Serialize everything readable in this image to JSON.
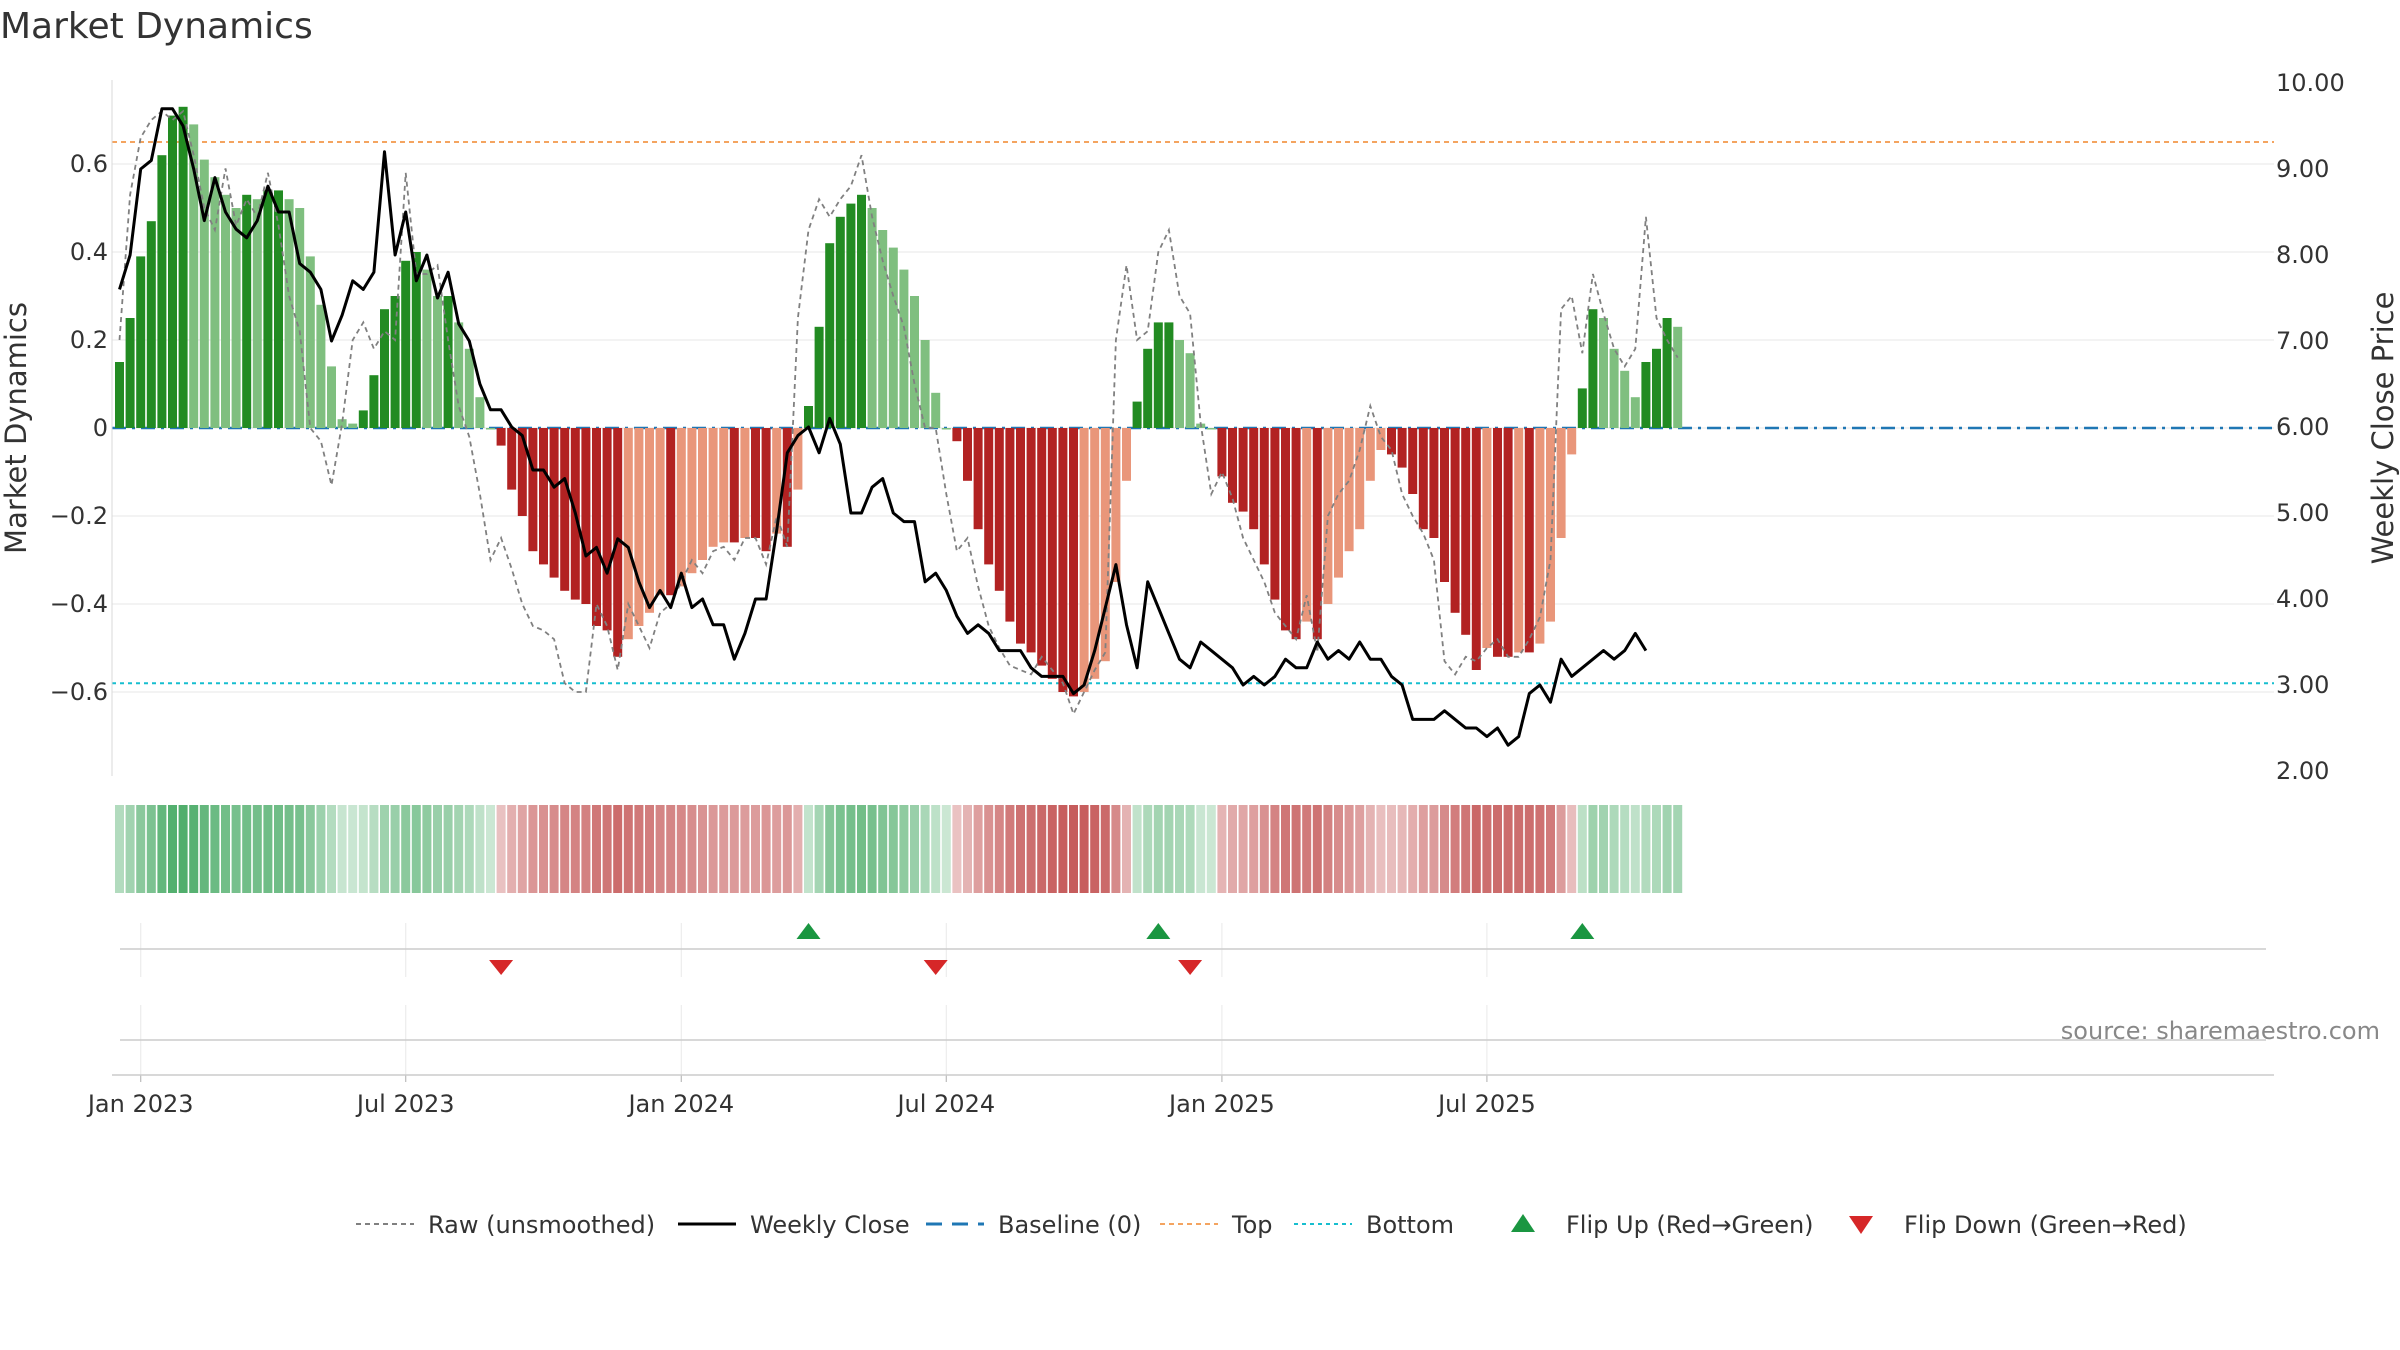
{
  "chart_data": {
    "type": "bar",
    "title": "Market Dynamics",
    "ylabel_left": "Market Dynamics",
    "ylabel_right": "Weekly Close Price",
    "ylim_left": [
      -0.78,
      0.78
    ],
    "ylim_right": [
      2.0,
      10.0
    ],
    "left_ticks": [
      {
        "v": 0.6,
        "label": "0.6"
      },
      {
        "v": 0.4,
        "label": "0.4"
      },
      {
        "v": 0.2,
        "label": "0.2"
      },
      {
        "v": 0,
        "label": "0"
      },
      {
        "v": -0.2,
        "label": "−0.2"
      },
      {
        "v": -0.4,
        "label": "−0.4"
      },
      {
        "v": -0.6,
        "label": "−0.6"
      }
    ],
    "right_ticks": [
      {
        "v": 10,
        "label": "10.00"
      },
      {
        "v": 9,
        "label": "9.00"
      },
      {
        "v": 8,
        "label": "8.00"
      },
      {
        "v": 7,
        "label": "7.00"
      },
      {
        "v": 6,
        "label": "6.00"
      },
      {
        "v": 5,
        "label": "5.00"
      },
      {
        "v": 4,
        "label": "4.00"
      },
      {
        "v": 3,
        "label": "3.00"
      },
      {
        "v": 2,
        "label": "2.00"
      }
    ],
    "x_ticks": [
      {
        "week": 2,
        "label": "Jan 2023"
      },
      {
        "week": 27,
        "label": "Jul 2023"
      },
      {
        "week": 53,
        "label": "Jan 2024"
      },
      {
        "week": 78,
        "label": "Jul 2024"
      },
      {
        "week": 104,
        "label": "Jan 2025"
      },
      {
        "week": 129,
        "label": "Jul 2025"
      }
    ],
    "top_level": 0.65,
    "bottom_level": -0.58,
    "baseline": 0,
    "dynamics": [
      0.15,
      0.25,
      0.39,
      0.47,
      0.62,
      0.71,
      0.73,
      0.69,
      0.61,
      0.57,
      0.53,
      0.5,
      0.53,
      0.52,
      0.54,
      0.54,
      0.52,
      0.5,
      0.39,
      0.28,
      0.14,
      0.02,
      0.01,
      0.04,
      0.12,
      0.27,
      0.3,
      0.38,
      0.4,
      0.36,
      0.3,
      0.3,
      0.24,
      0.18,
      0.07,
      0.0,
      -0.04,
      -0.14,
      -0.2,
      -0.28,
      -0.31,
      -0.34,
      -0.37,
      -0.39,
      -0.4,
      -0.45,
      -0.46,
      -0.52,
      -0.48,
      -0.45,
      -0.42,
      -0.38,
      -0.38,
      -0.36,
      -0.33,
      -0.3,
      -0.27,
      -0.26,
      -0.26,
      -0.25,
      -0.25,
      -0.28,
      -0.24,
      -0.27,
      -0.14,
      0.05,
      0.23,
      0.42,
      0.48,
      0.51,
      0.53,
      0.5,
      0.45,
      0.41,
      0.36,
      0.3,
      0.2,
      0.08,
      0.0,
      -0.03,
      -0.12,
      -0.23,
      -0.31,
      -0.37,
      -0.44,
      -0.49,
      -0.51,
      -0.54,
      -0.57,
      -0.6,
      -0.61,
      -0.6,
      -0.57,
      -0.53,
      -0.35,
      -0.12,
      0.06,
      0.18,
      0.24,
      0.24,
      0.2,
      0.17,
      0.01,
      0.0,
      -0.11,
      -0.17,
      -0.19,
      -0.23,
      -0.31,
      -0.39,
      -0.46,
      -0.48,
      -0.44,
      -0.48,
      -0.4,
      -0.34,
      -0.28,
      -0.23,
      -0.12,
      -0.05,
      -0.06,
      -0.09,
      -0.15,
      -0.23,
      -0.25,
      -0.35,
      -0.42,
      -0.47,
      -0.55,
      -0.5,
      -0.52,
      -0.52,
      -0.51,
      -0.51,
      -0.49,
      -0.44,
      -0.25,
      -0.06,
      0.09,
      0.27,
      0.25,
      0.18,
      0.13,
      0.07,
      0.15,
      0.18,
      0.25,
      0.23
    ],
    "raw": [
      0.2,
      0.53,
      0.66,
      0.7,
      0.72,
      0.7,
      0.72,
      0.62,
      0.5,
      0.45,
      0.59,
      0.46,
      0.52,
      0.48,
      0.58,
      0.46,
      0.3,
      0.22,
      0.0,
      -0.03,
      -0.13,
      0.01,
      0.2,
      0.24,
      0.18,
      0.22,
      0.2,
      0.58,
      0.35,
      0.35,
      0.37,
      0.2,
      0.05,
      -0.02,
      -0.15,
      -0.3,
      -0.25,
      -0.32,
      -0.4,
      -0.45,
      -0.46,
      -0.48,
      -0.58,
      -0.6,
      -0.6,
      -0.4,
      -0.45,
      -0.55,
      -0.4,
      -0.45,
      -0.5,
      -0.42,
      -0.4,
      -0.35,
      -0.3,
      -0.33,
      -0.28,
      -0.27,
      -0.3,
      -0.25,
      -0.25,
      -0.31,
      -0.2,
      -0.27,
      0.25,
      0.45,
      0.52,
      0.48,
      0.52,
      0.55,
      0.62,
      0.48,
      0.38,
      0.3,
      0.23,
      0.1,
      0.0,
      0.0,
      -0.15,
      -0.28,
      -0.25,
      -0.36,
      -0.45,
      -0.5,
      -0.54,
      -0.55,
      -0.56,
      -0.52,
      -0.55,
      -0.58,
      -0.65,
      -0.6,
      -0.55,
      -0.51,
      0.2,
      0.37,
      0.2,
      0.22,
      0.4,
      0.45,
      0.3,
      0.26,
      0.01,
      -0.15,
      -0.1,
      -0.16,
      -0.25,
      -0.3,
      -0.35,
      -0.42,
      -0.45,
      -0.48,
      -0.38,
      -0.51,
      -0.2,
      -0.15,
      -0.12,
      -0.05,
      0.05,
      -0.02,
      -0.05,
      -0.15,
      -0.2,
      -0.24,
      -0.3,
      -0.53,
      -0.56,
      -0.52,
      -0.53,
      -0.5,
      -0.48,
      -0.52,
      -0.52,
      -0.48,
      -0.43,
      -0.3,
      0.27,
      0.3,
      0.17,
      0.35,
      0.26,
      0.18,
      0.14,
      0.18,
      0.48,
      0.25,
      0.2,
      0.16
    ],
    "price": [
      7.6,
      8.0,
      9.0,
      9.1,
      9.7,
      9.7,
      9.5,
      9.0,
      8.4,
      8.9,
      8.5,
      8.3,
      8.2,
      8.4,
      8.8,
      8.5,
      8.5,
      7.9,
      7.8,
      7.6,
      7.0,
      7.3,
      7.7,
      7.6,
      7.8,
      9.2,
      8.0,
      8.5,
      7.7,
      8.0,
      7.5,
      7.8,
      7.2,
      7.0,
      6.5,
      6.2,
      6.2,
      6.0,
      5.9,
      5.5,
      5.5,
      5.3,
      5.4,
      5.0,
      4.5,
      4.6,
      4.3,
      4.7,
      4.6,
      4.2,
      3.9,
      4.1,
      3.9,
      4.3,
      3.9,
      4.0,
      3.7,
      3.7,
      3.3,
      3.6,
      4.0,
      4.0,
      4.8,
      5.7,
      5.9,
      6.0,
      5.7,
      6.1,
      5.8,
      5.0,
      5.0,
      5.3,
      5.4,
      5.0,
      4.9,
      4.9,
      4.2,
      4.3,
      4.1,
      3.8,
      3.6,
      3.7,
      3.6,
      3.4,
      3.4,
      3.4,
      3.2,
      3.1,
      3.1,
      3.1,
      2.9,
      3.0,
      3.4,
      3.9,
      4.4,
      3.7,
      3.2,
      4.2,
      3.9,
      3.6,
      3.3,
      3.2,
      3.5,
      3.4,
      3.3,
      3.2,
      3.0,
      3.1,
      3.0,
      3.1,
      3.3,
      3.2,
      3.2,
      3.5,
      3.3,
      3.4,
      3.3,
      3.5,
      3.3,
      3.3,
      3.1,
      3.0,
      2.6,
      2.6,
      2.6,
      2.7,
      2.6,
      2.5,
      2.5,
      2.4,
      2.5,
      2.3,
      2.4,
      2.9,
      3.0,
      2.8,
      3.3,
      3.1,
      3.2,
      3.3,
      3.4,
      3.3,
      3.4,
      3.6,
      3.4
    ],
    "flip_up_weeks": [
      65,
      98,
      138
    ],
    "flip_down_weeks": [
      36,
      77,
      101
    ],
    "colors": {
      "strong_green": "#228b22",
      "weak_green": "#7fbf7f",
      "strong_red": "#b22222",
      "weak_red": "#e9967a",
      "top_line": "#f4a460",
      "bottom_line": "#17becf",
      "baseline": "#1f77b4",
      "price_line": "#000000",
      "raw_line": "#808080",
      "flip_up": "#1a9641",
      "flip_down": "#d62728"
    },
    "legend": [
      {
        "label": "Raw (unsmoothed)",
        "style": "raw"
      },
      {
        "label": "Weekly Close",
        "style": "price"
      },
      {
        "label": "Baseline (0)",
        "style": "baseline"
      },
      {
        "label": "Top",
        "style": "top"
      },
      {
        "label": "Bottom",
        "style": "bottom"
      },
      {
        "label": "Flip Up (Red→Green)",
        "style": "flip_up"
      },
      {
        "label": "Flip Down (Green→Red)",
        "style": "flip_down"
      }
    ],
    "source": "source: sharemaestro.com"
  }
}
